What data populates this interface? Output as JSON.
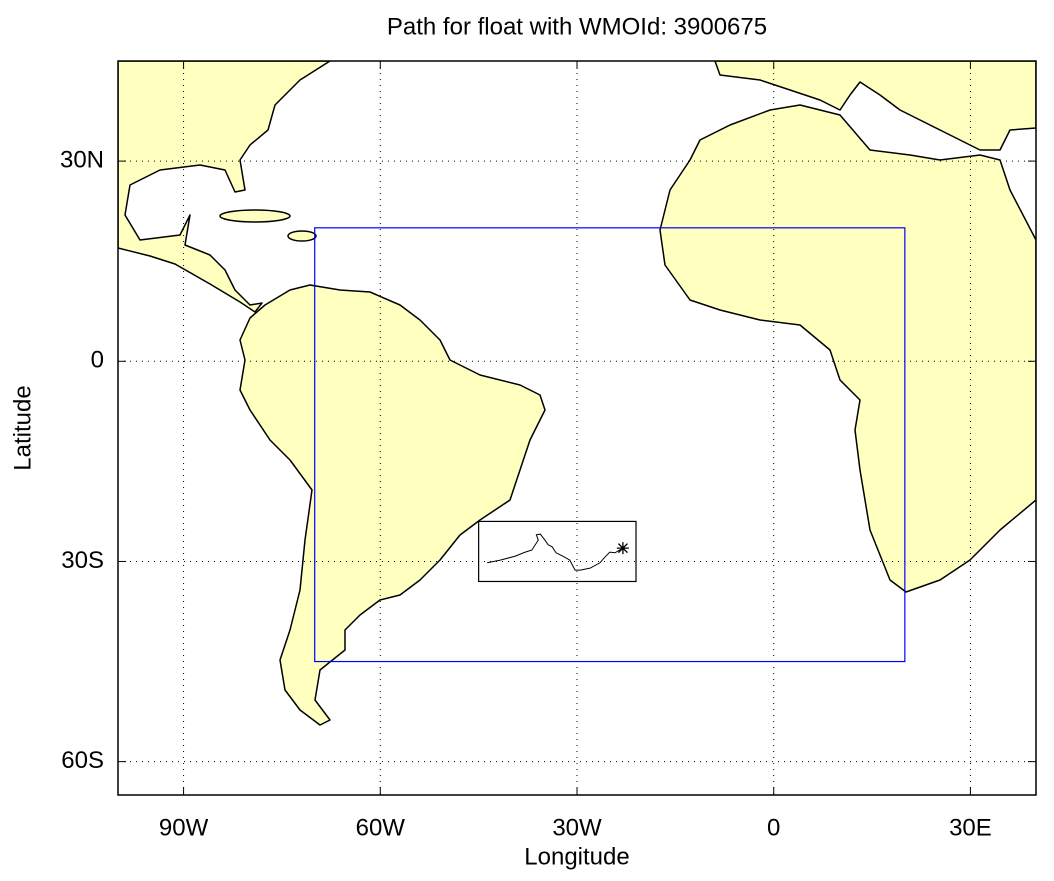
{
  "chart_data": {
    "type": "map",
    "title": "Path for float with WMOId: 3900675",
    "xlabel": "Longitude",
    "ylabel": "Latitude",
    "xlim": [
      -100,
      40
    ],
    "ylim": [
      -65,
      45
    ],
    "xticks": [
      {
        "value": -90,
        "label": "90W"
      },
      {
        "value": -60,
        "label": "60W"
      },
      {
        "value": -30,
        "label": "30W"
      },
      0,
      {
        "value": 30,
        "label": "30E"
      }
    ],
    "yticks": [
      {
        "value": -60,
        "label": "60S"
      },
      {
        "value": -30,
        "label": "30S"
      },
      0,
      {
        "value": 30,
        "label": "30N"
      }
    ],
    "grid": true,
    "regions": [
      {
        "color": "#0000ff",
        "lon": [
          -70,
          20
        ],
        "lat": [
          -45,
          20
        ]
      },
      {
        "color": "#000000",
        "lon": [
          -45,
          -21
        ],
        "lat": [
          -33,
          -24
        ]
      }
    ],
    "track": {
      "color": "#000000",
      "lon": [
        -43.7,
        -41.7,
        -39.4,
        -37.9,
        -36.9,
        -35.9,
        -36.2,
        -35.6,
        -34.9,
        -34.4,
        -33.8,
        -33.2,
        -32.2,
        -31.1,
        -30.3,
        -29.5,
        -28.0,
        -26.5,
        -25.7,
        -25.0,
        -24.2,
        -23.5,
        -23.0
      ],
      "lat": [
        -30.2,
        -29.8,
        -29.2,
        -28.6,
        -28.3,
        -26.8,
        -26.0,
        -25.9,
        -26.8,
        -27.5,
        -27.8,
        -28.7,
        -29.2,
        -29.8,
        -31.3,
        -31.3,
        -31.0,
        -30.2,
        -29.3,
        -28.6,
        -28.7,
        -28.3,
        -28.0
      ]
    }
  }
}
